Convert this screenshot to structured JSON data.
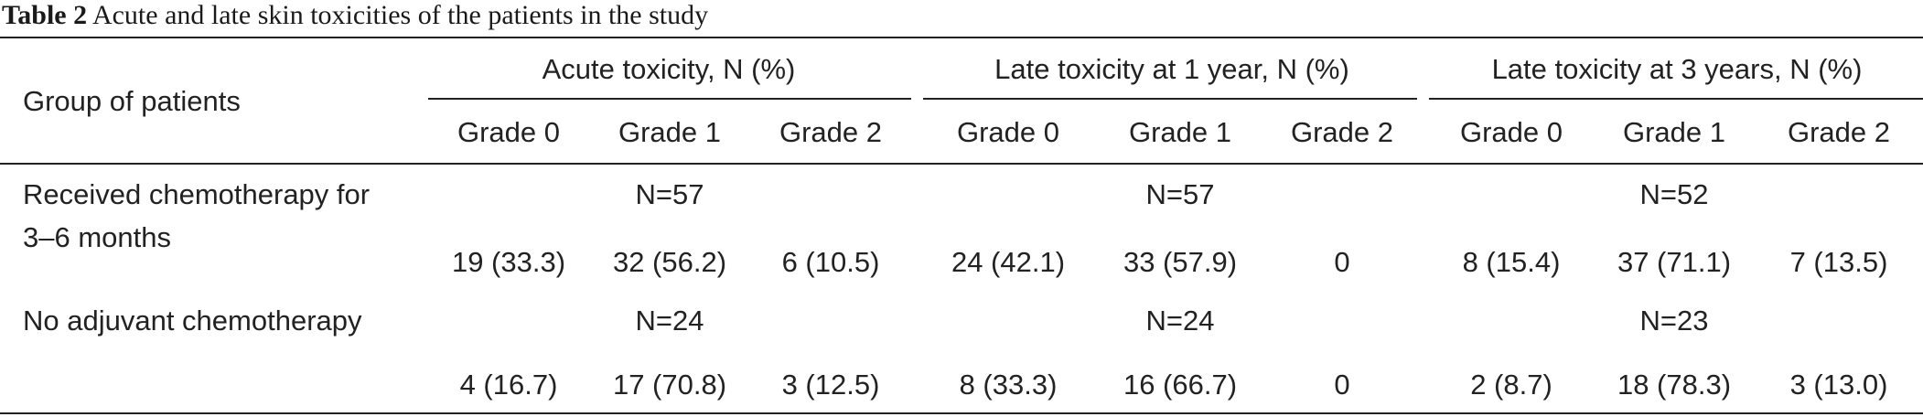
{
  "caption": {
    "label": "Table 2",
    "text": "Acute and late skin toxicities of the patients in the study"
  },
  "table": {
    "row_header": "Group of patients",
    "groups": [
      "Acute toxicity, N (%)",
      "Late toxicity at 1 year, N (%)",
      "Late toxicity at 3 years, N (%)"
    ],
    "grades": [
      "Grade 0",
      "Grade 1",
      "Grade 2"
    ],
    "rows": [
      {
        "label_line1": "Received chemotherapy for",
        "label_line2": "3–6 months",
        "n": [
          "N=57",
          "N=57",
          "N=52"
        ],
        "values": [
          [
            "19 (33.3)",
            "32 (56.2)",
            "6 (10.5)"
          ],
          [
            "24 (42.1)",
            "33 (57.9)",
            "0"
          ],
          [
            "8 (15.4)",
            "37 (71.1)",
            "7 (13.5)"
          ]
        ]
      },
      {
        "label_line1": "No adjuvant chemotherapy",
        "n": [
          "N=24",
          "N=24",
          "N=23"
        ],
        "values": [
          [
            "4 (16.7)",
            "17 (70.8)",
            "3 (12.5)"
          ],
          [
            "8 (33.3)",
            "16 (66.7)",
            "0"
          ],
          [
            "2 (8.7)",
            "18 (78.3)",
            "3 (13.0)"
          ]
        ]
      }
    ]
  }
}
